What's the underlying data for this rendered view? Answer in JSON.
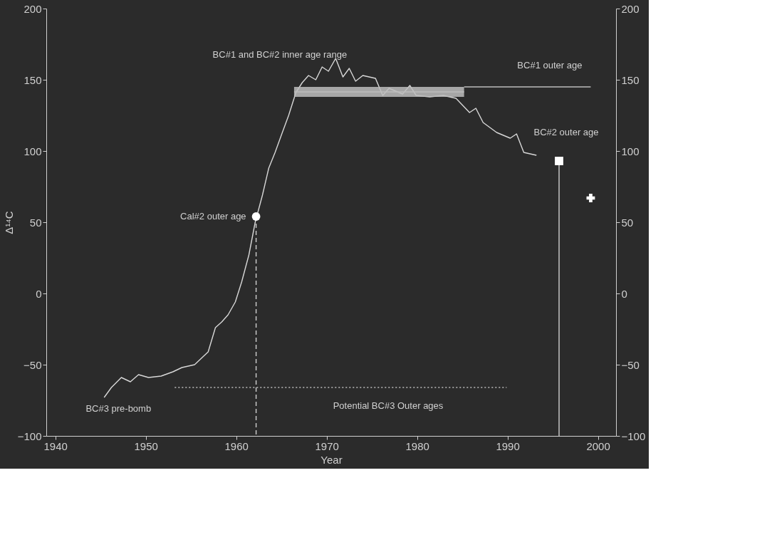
{
  "chart_data": {
    "type": "line",
    "xlabel": "Year",
    "ylabel": "Δ¹⁴C",
    "xlim": [
      1939,
      2002
    ],
    "xticks": [
      1940,
      1950,
      1960,
      1970,
      1980,
      1990,
      2000
    ],
    "ylim": [
      -100,
      200
    ],
    "yticks": [
      -100,
      -50,
      0,
      50,
      100,
      150,
      200
    ],
    "y2lim": [
      -100,
      200
    ],
    "y2ticks": [
      -100,
      -50,
      0,
      50,
      100,
      150,
      200
    ],
    "grid": false,
    "series": [
      {
        "color": "#d8d8d8",
        "line_style": "solid",
        "x": [
          1945.4,
          1946.2,
          1947.3,
          1948.3,
          1949.2,
          1950.3,
          1951.7,
          1953,
          1954,
          1955.4,
          1956.9,
          1957.7,
          1958.4,
          1959.1,
          1959.9,
          1960.6,
          1961.4,
          1962.1,
          1962.9,
          1963.6,
          1964.3,
          1965.1,
          1965.8,
          1966.6,
          1967.3,
          1968,
          1968.8,
          1969.5,
          1970.2,
          1971,
          1971.8,
          1972.5,
          1973.2,
          1974,
          1975.4,
          1976.2,
          1976.9,
          1978.4,
          1979.2,
          1979.9,
          1981.4,
          1982.9,
          1984.3,
          1985.8,
          1986.5,
          1987.3,
          1988.8,
          1990.3,
          1991,
          1991.8,
          1993.2
        ],
        "values": [
          -73,
          -66,
          -59,
          -62,
          -57,
          -59,
          -58,
          -55,
          -52,
          -50,
          -41,
          -24,
          -20,
          -15,
          -6,
          8,
          27,
          50,
          69,
          88,
          99,
          113,
          125,
          141,
          148,
          153,
          150,
          159,
          156,
          165,
          152,
          158,
          149,
          153,
          151,
          139,
          144,
          140,
          146,
          139,
          138,
          139,
          137,
          127,
          130,
          120,
          113,
          109,
          112,
          99,
          97
        ]
      },
      {
        "type": "line",
        "color": "#bdbdbd",
        "line_style": "solid",
        "x": [
          1966.4,
          1985.2
        ],
        "values": [
          141.5,
          141.5
        ],
        "lower": [
          138,
          138
        ],
        "upper": [
          145,
          145
        ]
      },
      {
        "type": "line",
        "color": "#bdbdbd",
        "line_style": "solid",
        "x": [
          1985.2,
          1999.2
        ],
        "values": [
          145,
          145
        ]
      },
      {
        "type": "line",
        "color": "#bdbdbd",
        "line_style": "dotted",
        "x": [
          1953.2,
          1989.9
        ],
        "values": [
          -66,
          -66
        ]
      },
      {
        "type": "line",
        "color": "#cfcfcf",
        "line_style": "dashed",
        "x": [
          1962.2,
          1962.2
        ],
        "values": [
          54,
          -100
        ]
      },
      {
        "type": "line",
        "color": "#cfcfcf",
        "line_style": "solid",
        "x": [
          1995.7,
          1995.7
        ],
        "values": [
          93,
          -100
        ]
      },
      {
        "type": "scatter",
        "color": "#ffffff",
        "marker": "circle",
        "x": [
          1962.2
        ],
        "values": [
          54
        ]
      },
      {
        "type": "scatter",
        "color": "#ffffff",
        "marker": "square",
        "x": [
          1995.7
        ],
        "values": [
          93
        ]
      },
      {
        "type": "scatter",
        "color": "#ffffff",
        "marker": "cross",
        "x": [
          1999.2
        ],
        "values": [
          67
        ]
      }
    ],
    "annotations": [
      {
        "text": "BC#1 and BC#2 inner age range",
        "x": 1966.4,
        "y": 145
      },
      {
        "text": "BC#1 outer age",
        "x": 1999.2,
        "y": 145
      },
      {
        "text": "BC#2 outer age",
        "x": 1995.7,
        "y": 93
      },
      {
        "text": "Cal#2 outer age",
        "x": 1962.2,
        "y": 54
      },
      {
        "text": "BC#3 pre-bomb",
        "x": 1945.4,
        "y": -73
      },
      "Potential BC#3 Outer ages"
    ]
  }
}
